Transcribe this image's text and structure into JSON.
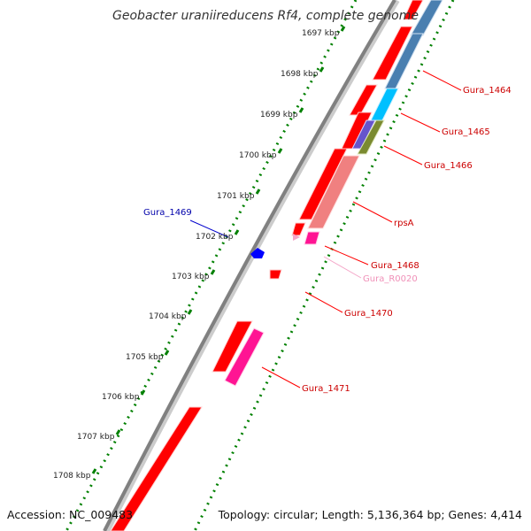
{
  "title": "Geobacter uraniireducens Rf4, complete genome",
  "footer": {
    "accession": "Accession: NC_009483",
    "summary": "Topology: circular; Length: 5,136,364 bp; Genes: 4,414"
  },
  "ticks": [
    "1697 kbp",
    "1698 kbp",
    "1699 kbp",
    "1700 kbp",
    "1701 kbp",
    "1702 kbp",
    "1703 kbp",
    "1704 kbp",
    "1705 kbp",
    "1706 kbp",
    "1707 kbp",
    "1708 kbp"
  ],
  "genes": [
    {
      "label": "Gura_1464",
      "color": "#cc0000"
    },
    {
      "label": "Gura_1465",
      "color": "#cc0000"
    },
    {
      "label": "Gura_1466",
      "color": "#cc0000"
    },
    {
      "label": "rpsA",
      "color": "#cc0000"
    },
    {
      "label": "Gura_1468",
      "color": "#cc0000"
    },
    {
      "label": "Gura_R0020",
      "color": "#f090b8"
    },
    {
      "label": "Gura_1470",
      "color": "#cc0000"
    },
    {
      "label": "Gura_1471",
      "color": "#cc0000"
    },
    {
      "label": "Gura_1469",
      "color": "#0000aa"
    }
  ],
  "colors": {
    "cds_red": "#ff0000",
    "cds_blue": "#4a7fb0",
    "cds_cyan": "#00c0ff",
    "cds_purple": "#6655cc",
    "cds_olive": "#7a8a30",
    "cds_salmon": "#f08080",
    "cds_magenta": "#ff1493",
    "rrna_pink": "#f4a6c8",
    "tick_green": "#008000",
    "backbone": "#888888"
  }
}
